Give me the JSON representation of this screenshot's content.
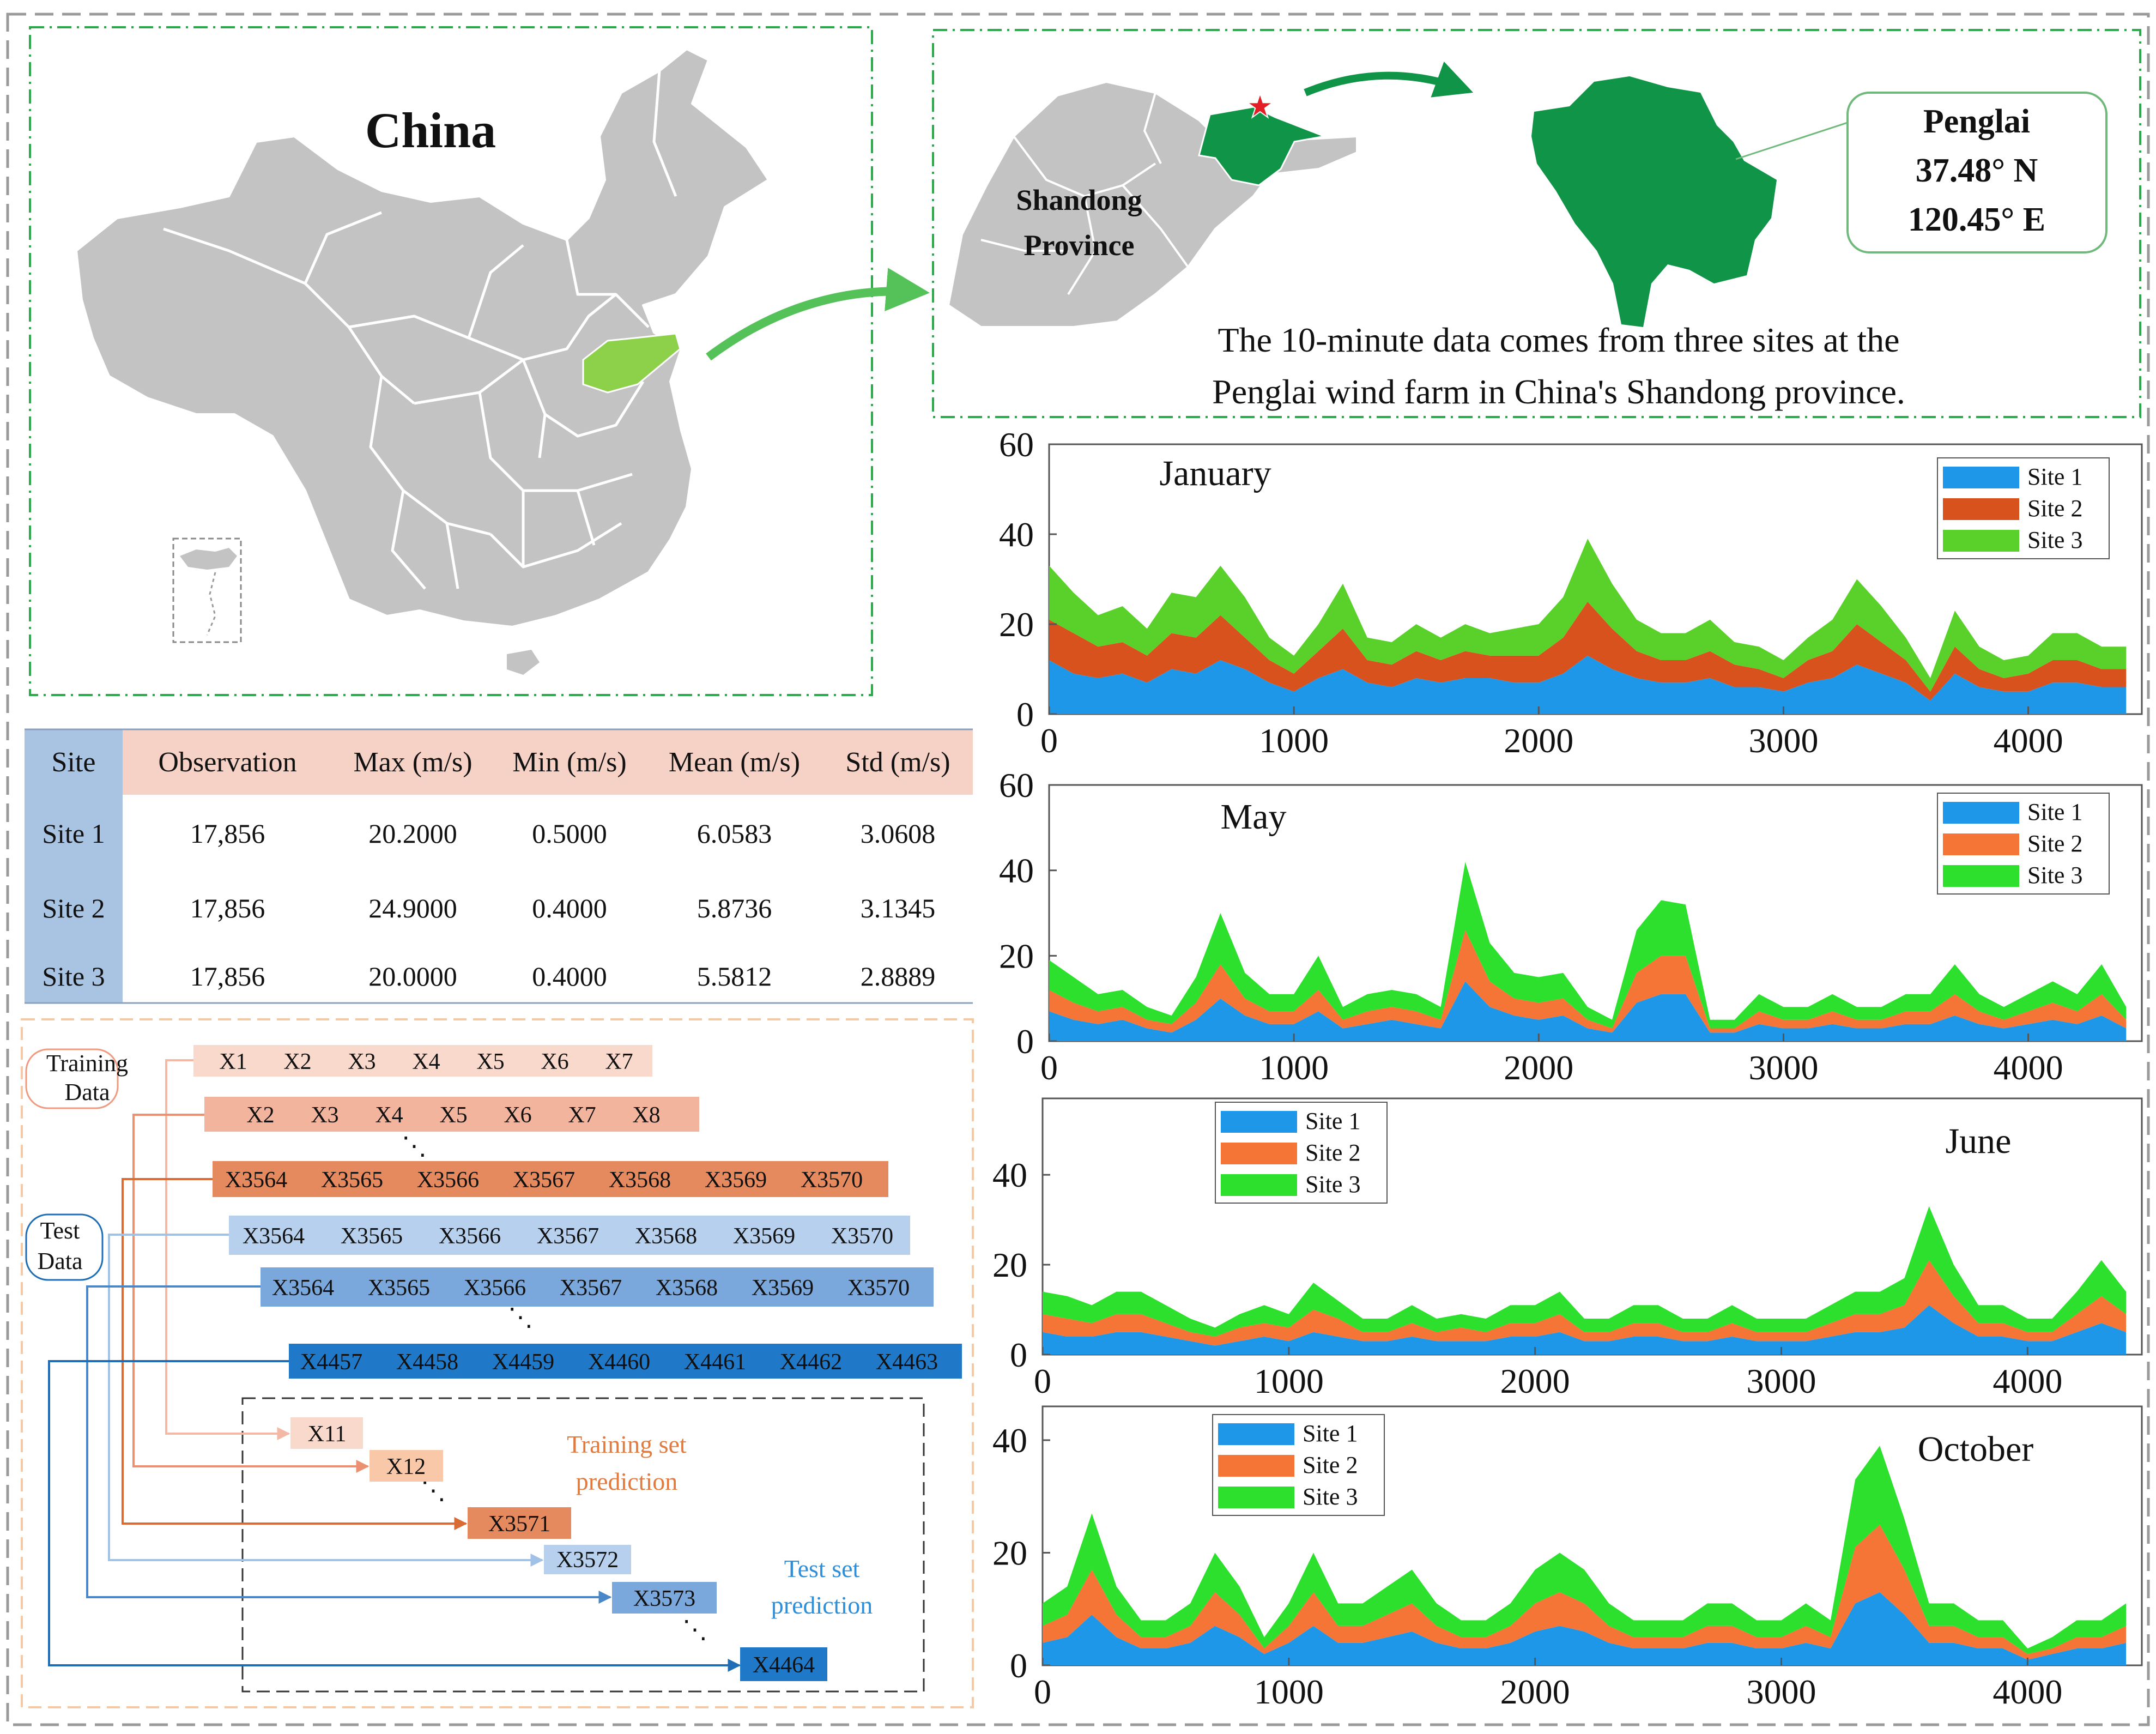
{
  "map_panel": {
    "title": "China"
  },
  "shandong_panel": {
    "province_label_line1": "Shandong",
    "province_label_line2": "Province",
    "callout_name": "Penglai",
    "callout_lat": "37.48° N",
    "callout_lon": "120.45° E",
    "caption_line1": "The 10-minute data comes from three sites at the",
    "caption_line2": "Penglai wind farm in China's Shandong province."
  },
  "colors": {
    "map_gray": "#c3c3c3",
    "map_green_light": "#8dd14a",
    "map_green_dark": "#109448",
    "arrow_green": "#55c259",
    "table_header_blue": "#a9c4e3",
    "table_header_pink": "#f6d2c6"
  },
  "stats_table": {
    "headers": [
      "Site",
      "Observation",
      "Max (m/s)",
      "Min (m/s)",
      "Mean (m/s)",
      "Std (m/s)"
    ],
    "rows": [
      [
        "Site 1",
        "17,856",
        "20.2000",
        "0.5000",
        "6.0583",
        "3.0608"
      ],
      [
        "Site 2",
        "17,856",
        "24.9000",
        "0.4000",
        "5.8736",
        "3.1345"
      ],
      [
        "Site 3",
        "17,856",
        "20.0000",
        "0.4000",
        "5.5812",
        "2.8889"
      ]
    ]
  },
  "schema": {
    "training_data_label_line1": "Training",
    "training_data_label_line2": "Data",
    "test_data_label_line1": "Test",
    "test_data_label_line2": "Data",
    "row1": [
      "X1",
      "X2",
      "X3",
      "X4",
      "X5",
      "X6",
      "X7"
    ],
    "row2": [
      "X2",
      "X3",
      "X4",
      "X5",
      "X6",
      "X7",
      "X8"
    ],
    "row3": [
      "X3564",
      "X3565",
      "X3566",
      "X3567",
      "X3568",
      "X3569",
      "X3570"
    ],
    "row4": [
      "X3564",
      "X3565",
      "X3566",
      "X3567",
      "X3568",
      "X3569",
      "X3570"
    ],
    "row5": [
      "X3564",
      "X3565",
      "X3566",
      "X3567",
      "X3568",
      "X3569",
      "X3570"
    ],
    "row6": [
      "X4457",
      "X4458",
      "X4459",
      "X4460",
      "X4461",
      "X4462",
      "X4463"
    ],
    "out1": "X11",
    "out2": "X12",
    "out3": "X3571",
    "out4": "X3572",
    "out5": "X3573",
    "out6": "X4464",
    "ellipsis": "⋱",
    "training_pred_line1": "Training set",
    "training_pred_line2": "prediction",
    "test_pred_line1": "Test set",
    "test_pred_line2": "prediction"
  },
  "chart_data": [
    {
      "type": "area",
      "title": "January",
      "stacked": true,
      "xlim": [
        0,
        4464
      ],
      "ylim": [
        0,
        60
      ],
      "xticks": [
        "0",
        "1000",
        "2000",
        "3000",
        "4000"
      ],
      "yticks": [
        "0",
        "20",
        "40",
        "60"
      ],
      "legend_position": "top-right",
      "legend": [
        "Site 1",
        "Site 2",
        "Site 3"
      ],
      "colors": [
        "#1e97e8",
        "#d8521e",
        "#5ad12a"
      ],
      "x": [
        0,
        100,
        200,
        300,
        400,
        500,
        600,
        700,
        800,
        900,
        1000,
        1100,
        1200,
        1300,
        1400,
        1500,
        1600,
        1700,
        1800,
        1900,
        2000,
        2100,
        2200,
        2300,
        2400,
        2500,
        2600,
        2700,
        2800,
        2900,
        3000,
        3100,
        3200,
        3300,
        3400,
        3500,
        3600,
        3700,
        3800,
        3900,
        4000,
        4100,
        4200,
        4300,
        4400
      ],
      "series": [
        {
          "name": "Site 1",
          "values": [
            12,
            9,
            8,
            9,
            7,
            10,
            9,
            12,
            10,
            7,
            5,
            8,
            10,
            7,
            6,
            8,
            7,
            8,
            8,
            7,
            7,
            9,
            13,
            10,
            8,
            7,
            7,
            8,
            6,
            6,
            5,
            7,
            8,
            11,
            9,
            7,
            3,
            9,
            6,
            5,
            5,
            7,
            7,
            6,
            6
          ]
        },
        {
          "name": "Site 2",
          "values": [
            9,
            9,
            7,
            7,
            6,
            8,
            8,
            10,
            7,
            5,
            4,
            6,
            9,
            5,
            5,
            6,
            5,
            6,
            5,
            6,
            6,
            8,
            12,
            9,
            6,
            5,
            5,
            6,
            5,
            4,
            3,
            5,
            6,
            9,
            7,
            5,
            2,
            6,
            4,
            3,
            4,
            5,
            5,
            4,
            4
          ]
        },
        {
          "name": "Site 3",
          "values": [
            12,
            9,
            7,
            8,
            6,
            9,
            9,
            11,
            9,
            5,
            4,
            6,
            10,
            5,
            5,
            6,
            5,
            6,
            5,
            6,
            7,
            9,
            14,
            10,
            7,
            6,
            6,
            7,
            5,
            5,
            4,
            5,
            7,
            10,
            8,
            5,
            3,
            8,
            5,
            4,
            4,
            6,
            6,
            5,
            5
          ]
        }
      ]
    },
    {
      "type": "area",
      "title": "May",
      "stacked": true,
      "xlim": [
        0,
        4464
      ],
      "ylim": [
        0,
        60
      ],
      "xticks": [
        "0",
        "1000",
        "2000",
        "3000",
        "4000"
      ],
      "yticks": [
        "0",
        "20",
        "40",
        "60"
      ],
      "legend_position": "top-right",
      "legend": [
        "Site 1",
        "Site 2",
        "Site 3"
      ],
      "colors": [
        "#1e97e8",
        "#f47535",
        "#2ee02e"
      ],
      "x": [
        0,
        100,
        200,
        300,
        400,
        500,
        600,
        700,
        800,
        900,
        1000,
        1100,
        1200,
        1300,
        1400,
        1500,
        1600,
        1700,
        1800,
        1900,
        2000,
        2100,
        2200,
        2300,
        2400,
        2500,
        2600,
        2700,
        2800,
        2900,
        3000,
        3100,
        3200,
        3300,
        3400,
        3500,
        3600,
        3700,
        3800,
        3900,
        4000,
        4100,
        4200,
        4300,
        4400
      ],
      "series": [
        {
          "name": "Site 1",
          "values": [
            7,
            5,
            4,
            5,
            3,
            2,
            5,
            10,
            6,
            4,
            4,
            7,
            3,
            4,
            5,
            4,
            3,
            14,
            8,
            6,
            5,
            6,
            3,
            2,
            9,
            11,
            11,
            2,
            2,
            4,
            3,
            3,
            4,
            3,
            3,
            4,
            4,
            6,
            4,
            3,
            4,
            5,
            4,
            6,
            3
          ]
        },
        {
          "name": "Site 2",
          "values": [
            5,
            4,
            3,
            3,
            2,
            2,
            4,
            8,
            4,
            3,
            3,
            5,
            2,
            3,
            3,
            3,
            2,
            12,
            6,
            4,
            4,
            4,
            2,
            1,
            7,
            9,
            9,
            1,
            1,
            3,
            2,
            2,
            3,
            2,
            2,
            3,
            3,
            5,
            3,
            2,
            3,
            4,
            3,
            5,
            2
          ]
        },
        {
          "name": "Site 3",
          "values": [
            7,
            6,
            4,
            4,
            3,
            2,
            6,
            12,
            6,
            4,
            4,
            8,
            3,
            4,
            4,
            4,
            3,
            16,
            9,
            6,
            6,
            6,
            3,
            2,
            10,
            13,
            12,
            2,
            2,
            4,
            3,
            3,
            4,
            3,
            3,
            4,
            4,
            7,
            4,
            3,
            4,
            5,
            4,
            7,
            3
          ]
        }
      ]
    },
    {
      "type": "area",
      "title": "June",
      "stacked": true,
      "xlim": [
        0,
        4464
      ],
      "ylim": [
        0,
        57
      ],
      "xticks": [
        "0",
        "1000",
        "2000",
        "3000",
        "4000"
      ],
      "yticks": [
        "0",
        "20",
        "40"
      ],
      "legend_position": "top-left",
      "legend": [
        "Site 1",
        "Site 2",
        "Site 3"
      ],
      "colors": [
        "#1e97e8",
        "#f47535",
        "#2ee02e"
      ],
      "x": [
        0,
        100,
        200,
        300,
        400,
        500,
        600,
        700,
        800,
        900,
        1000,
        1100,
        1200,
        1300,
        1400,
        1500,
        1600,
        1700,
        1800,
        1900,
        2000,
        2100,
        2200,
        2300,
        2400,
        2500,
        2600,
        2700,
        2800,
        2900,
        3000,
        3100,
        3200,
        3300,
        3400,
        3500,
        3600,
        3700,
        3800,
        3900,
        4000,
        4100,
        4200,
        4300,
        4400
      ],
      "series": [
        {
          "name": "Site 1",
          "values": [
            5,
            4,
            4,
            5,
            5,
            4,
            3,
            2,
            3,
            4,
            3,
            5,
            4,
            3,
            3,
            4,
            3,
            3,
            3,
            4,
            4,
            5,
            3,
            3,
            4,
            4,
            3,
            3,
            4,
            3,
            3,
            3,
            4,
            5,
            5,
            6,
            11,
            7,
            4,
            4,
            3,
            3,
            5,
            7,
            5
          ]
        },
        {
          "name": "Site 2",
          "values": [
            4,
            4,
            3,
            4,
            4,
            3,
            2,
            2,
            3,
            3,
            3,
            5,
            4,
            2,
            2,
            3,
            2,
            3,
            2,
            3,
            3,
            4,
            2,
            2,
            3,
            3,
            2,
            2,
            3,
            2,
            2,
            2,
            3,
            4,
            4,
            5,
            10,
            6,
            3,
            3,
            2,
            2,
            4,
            6,
            4
          ]
        },
        {
          "name": "Site 3",
          "values": [
            5,
            5,
            4,
            5,
            5,
            4,
            3,
            2,
            3,
            4,
            3,
            6,
            4,
            3,
            3,
            4,
            3,
            3,
            3,
            4,
            4,
            5,
            3,
            3,
            4,
            4,
            3,
            3,
            4,
            3,
            3,
            3,
            4,
            5,
            5,
            6,
            12,
            7,
            4,
            4,
            3,
            3,
            5,
            8,
            5
          ]
        }
      ]
    },
    {
      "type": "area",
      "title": "October",
      "stacked": true,
      "xlim": [
        0,
        4464
      ],
      "ylim": [
        0,
        46
      ],
      "xticks": [
        "0",
        "1000",
        "2000",
        "3000",
        "4000"
      ],
      "yticks": [
        "0",
        "20",
        "40"
      ],
      "legend_position": "top-left",
      "legend": [
        "Site 1",
        "Site 2",
        "Site 3"
      ],
      "colors": [
        "#1e97e8",
        "#f47535",
        "#2ee02e"
      ],
      "x": [
        0,
        100,
        200,
        300,
        400,
        500,
        600,
        700,
        800,
        900,
        1000,
        1100,
        1200,
        1300,
        1400,
        1500,
        1600,
        1700,
        1800,
        1900,
        2000,
        2100,
        2200,
        2300,
        2400,
        2500,
        2600,
        2700,
        2800,
        2900,
        3000,
        3100,
        3200,
        3300,
        3400,
        3500,
        3600,
        3700,
        3800,
        3900,
        4000,
        4100,
        4200,
        4300,
        4400
      ],
      "series": [
        {
          "name": "Site 1",
          "values": [
            4,
            5,
            9,
            5,
            3,
            3,
            4,
            7,
            5,
            2,
            4,
            7,
            4,
            4,
            5,
            6,
            4,
            3,
            3,
            4,
            6,
            7,
            6,
            4,
            3,
            3,
            3,
            4,
            4,
            3,
            3,
            4,
            3,
            11,
            13,
            9,
            4,
            4,
            3,
            3,
            1,
            2,
            3,
            3,
            4
          ]
        },
        {
          "name": "Site 2",
          "values": [
            3,
            4,
            8,
            4,
            2,
            2,
            3,
            6,
            4,
            1,
            3,
            6,
            3,
            3,
            4,
            5,
            3,
            2,
            2,
            3,
            5,
            6,
            5,
            3,
            2,
            2,
            2,
            3,
            3,
            2,
            2,
            3,
            2,
            10,
            12,
            8,
            3,
            3,
            2,
            2,
            1,
            1,
            2,
            2,
            3
          ]
        },
        {
          "name": "Site 3",
          "values": [
            4,
            5,
            10,
            5,
            3,
            3,
            4,
            7,
            5,
            2,
            4,
            7,
            4,
            4,
            5,
            6,
            4,
            3,
            3,
            4,
            6,
            7,
            6,
            4,
            3,
            3,
            3,
            4,
            4,
            3,
            3,
            4,
            3,
            12,
            14,
            9,
            4,
            4,
            3,
            3,
            1,
            2,
            3,
            3,
            4
          ]
        }
      ]
    }
  ]
}
